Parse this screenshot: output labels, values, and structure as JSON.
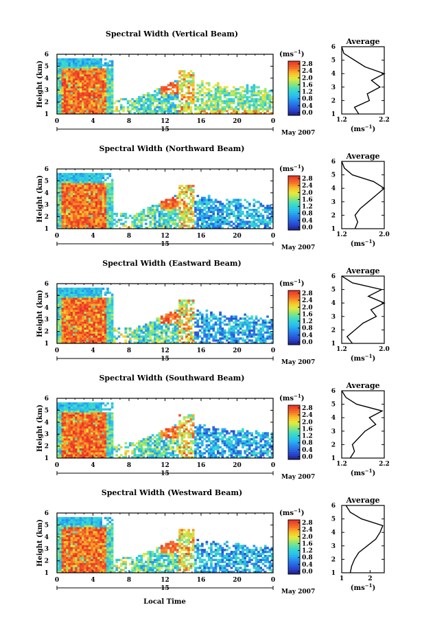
{
  "figure": {
    "xlabel": "Local Time",
    "date_label": "May 2007",
    "cb_unit": "(ms",
    "cb_unit_exp": "−1",
    "avg_title": "Average",
    "avg_xlabel": "(ms",
    "avg_xlabel_exp": "−1"
  },
  "chart_data": [
    {
      "type": "heatmap",
      "title": "Spectral Width (Vertical Beam)",
      "ylabel": "Height (km)",
      "xlabel": "Local Time",
      "x_ticks": [
        "0",
        "4",
        "8",
        "12",
        "16",
        "20",
        "0"
      ],
      "day_marker": "15",
      "y_ticks": [
        "1",
        "2",
        "3",
        "4",
        "5",
        "6"
      ],
      "xlim": [
        0,
        24
      ],
      "ylim": [
        1,
        6
      ],
      "colorbar": {
        "label": "(ms^-1)",
        "ticks": [
          "0.0",
          "0.4",
          "0.8",
          "1.2",
          "1.6",
          "2.0",
          "2.4",
          "2.8"
        ],
        "range": [
          0,
          2.8
        ]
      },
      "average_profile": {
        "title": "Average",
        "xlabel": "(ms^-1)",
        "x_ticks": [
          "1.2",
          "2.2"
        ],
        "xlim": [
          1.2,
          2.2
        ],
        "heights": [
          1.0,
          1.5,
          2.0,
          2.5,
          3.0,
          3.5,
          4.0,
          4.5,
          5.0,
          5.5,
          6.0
        ],
        "values": [
          1.6,
          1.5,
          1.85,
          1.8,
          2.1,
          1.9,
          2.2,
          1.75,
          1.5,
          1.25,
          1.2
        ]
      }
    },
    {
      "type": "heatmap",
      "title": "Spectral Width (Northward Beam)",
      "ylabel": "Height (km)",
      "xlabel": "Local Time",
      "x_ticks": [
        "0",
        "4",
        "8",
        "12",
        "16",
        "20",
        "0"
      ],
      "day_marker": "15",
      "y_ticks": [
        "1",
        "2",
        "3",
        "4",
        "5",
        "6"
      ],
      "xlim": [
        0,
        24
      ],
      "ylim": [
        1,
        6
      ],
      "colorbar": {
        "label": "(ms^-1)",
        "ticks": [
          "0.0",
          "0.4",
          "0.8",
          "1.2",
          "1.6",
          "2.0",
          "2.4",
          "2.8"
        ],
        "range": [
          0,
          2.8
        ]
      },
      "average_profile": {
        "title": "Average",
        "xlabel": "(ms^-1)",
        "x_ticks": [
          "1.2",
          "2.0"
        ],
        "xlim": [
          1.2,
          2.0
        ],
        "heights": [
          1.0,
          1.5,
          2.0,
          2.5,
          3.0,
          3.5,
          4.0,
          4.5,
          5.0,
          5.5,
          6.0
        ],
        "values": [
          1.45,
          1.5,
          1.45,
          1.55,
          1.7,
          1.85,
          2.0,
          1.8,
          1.4,
          1.25,
          1.2
        ]
      }
    },
    {
      "type": "heatmap",
      "title": "Spectral Width (Eastward Beam)",
      "ylabel": "Height (km)",
      "xlabel": "Local Time",
      "x_ticks": [
        "0",
        "4",
        "8",
        "12",
        "16",
        "20",
        "0"
      ],
      "day_marker": "15",
      "y_ticks": [
        "1",
        "2",
        "3",
        "4",
        "5",
        "6"
      ],
      "xlim": [
        0,
        24
      ],
      "ylim": [
        1,
        6
      ],
      "colorbar": {
        "label": "(ms^-1)",
        "ticks": [
          "0.0",
          "0.4",
          "0.8",
          "1.2",
          "1.6",
          "2.0",
          "2.4",
          "2.8"
        ],
        "range": [
          0,
          2.8
        ]
      },
      "average_profile": {
        "title": "Average",
        "xlabel": "(ms^-1)",
        "x_ticks": [
          "1.2",
          "2.0"
        ],
        "xlim": [
          1.2,
          2.0
        ],
        "heights": [
          1.0,
          1.5,
          2.0,
          2.5,
          3.0,
          3.5,
          4.0,
          4.5,
          5.0,
          5.5,
          6.0
        ],
        "values": [
          1.4,
          1.3,
          1.45,
          1.6,
          1.85,
          1.75,
          2.0,
          1.7,
          1.95,
          1.4,
          1.2
        ]
      }
    },
    {
      "type": "heatmap",
      "title": "Spectral Width (Southward Beam)",
      "ylabel": "Height (km)",
      "xlabel": "Local Time",
      "x_ticks": [
        "0",
        "4",
        "8",
        "12",
        "16",
        "20",
        "0"
      ],
      "day_marker": "15",
      "y_ticks": [
        "1",
        "2",
        "3",
        "4",
        "5",
        "6"
      ],
      "xlim": [
        0,
        24
      ],
      "ylim": [
        1,
        6
      ],
      "colorbar": {
        "label": "(ms^-1)",
        "ticks": [
          "0.0",
          "0.4",
          "0.8",
          "1.2",
          "1.6",
          "2.0",
          "2.4",
          "2.8"
        ],
        "range": [
          0,
          2.8
        ]
      },
      "average_profile": {
        "title": "Average",
        "xlabel": "(ms^-1)",
        "x_ticks": [
          "1.2",
          "2.2"
        ],
        "xlim": [
          1.2,
          2.2
        ],
        "heights": [
          1.0,
          1.5,
          2.0,
          2.5,
          3.0,
          3.5,
          4.0,
          4.5,
          5.0,
          5.5,
          6.0
        ],
        "values": [
          1.4,
          1.5,
          1.45,
          1.6,
          1.75,
          2.0,
          1.85,
          2.15,
          1.55,
          1.3,
          1.2
        ]
      }
    },
    {
      "type": "heatmap",
      "title": "Spectral Width (Westward Beam)",
      "ylabel": "Height (km)",
      "xlabel": "Local Time",
      "x_ticks": [
        "0",
        "4",
        "8",
        "12",
        "16",
        "20",
        "0"
      ],
      "day_marker": "15",
      "y_ticks": [
        "1",
        "2",
        "3",
        "4",
        "5",
        "6"
      ],
      "xlim": [
        0,
        24
      ],
      "ylim": [
        1,
        6
      ],
      "colorbar": {
        "label": "(ms^-1)",
        "ticks": [
          "0.0",
          "0.4",
          "0.8",
          "1.2",
          "1.6",
          "2.0",
          "2.4",
          "2.8"
        ],
        "range": [
          0,
          2.8
        ]
      },
      "average_profile": {
        "title": "Average",
        "xlabel": "(ms^-1)",
        "x_ticks": [
          "1",
          "2"
        ],
        "xlim": [
          1.0,
          2.5
        ],
        "heights": [
          1.0,
          1.5,
          2.0,
          2.5,
          3.0,
          3.5,
          4.0,
          4.5,
          5.0,
          5.5,
          6.0
        ],
        "values": [
          1.3,
          1.35,
          1.45,
          1.6,
          1.9,
          2.2,
          2.35,
          2.45,
          1.7,
          1.3,
          1.15
        ]
      }
    }
  ]
}
